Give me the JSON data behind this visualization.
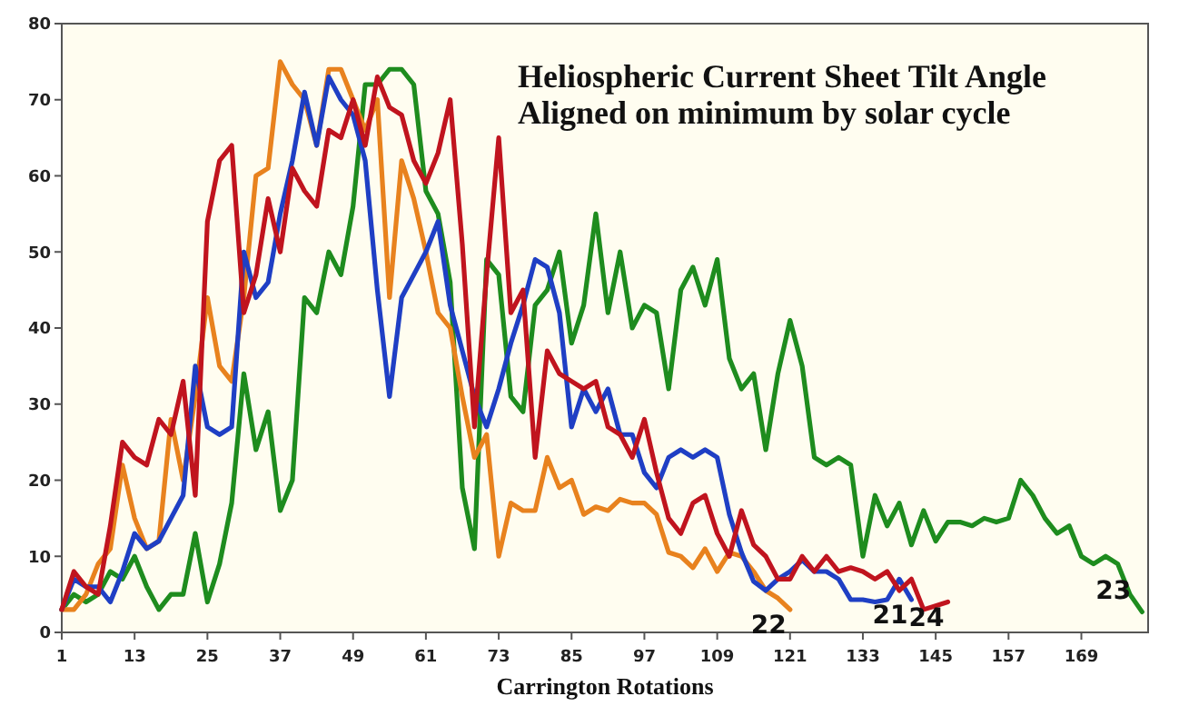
{
  "chart_data": {
    "type": "line",
    "title": "Heliospheric Current Sheet Tilt Angle",
    "subtitle": "Aligned on minimum by solar cycle",
    "xlabel": "Carrington Rotations",
    "x": [
      1,
      3,
      5,
      7,
      9,
      11,
      13,
      15,
      17,
      19,
      21,
      23,
      25,
      27,
      29,
      31,
      33,
      35,
      37,
      39,
      41,
      43,
      45,
      47,
      49,
      51,
      53,
      55,
      57,
      59,
      61,
      63,
      65,
      67,
      69,
      71,
      73,
      75,
      77,
      79,
      81,
      83,
      85,
      87,
      89,
      91,
      93,
      95,
      97,
      99,
      101,
      103,
      105,
      107,
      109,
      111,
      113,
      115,
      117,
      119,
      121,
      123,
      125,
      127,
      129,
      131,
      133,
      135,
      137,
      139,
      141,
      143,
      145,
      147,
      149,
      151,
      153,
      155,
      157,
      159,
      161,
      163,
      165,
      167,
      169,
      171,
      173,
      175,
      177,
      179
    ],
    "xlim": [
      1,
      180
    ],
    "xticks": [
      1,
      13,
      25,
      37,
      49,
      61,
      73,
      85,
      97,
      109,
      121,
      133,
      145,
      157,
      169
    ],
    "ylim": [
      0,
      80
    ],
    "yticks": [
      0,
      10,
      20,
      30,
      40,
      50,
      60,
      70,
      80
    ],
    "grid": false,
    "marker": "none",
    "line_style": "solid",
    "series": [
      {
        "name": "23",
        "color": "#1e8c1e",
        "values": [
          3,
          5,
          4,
          5,
          8,
          7,
          10,
          6,
          3,
          5,
          5,
          13,
          4,
          9,
          17,
          34,
          24,
          29,
          16,
          20,
          44,
          42,
          50,
          47,
          56,
          72,
          72,
          74,
          74,
          72,
          58,
          55,
          46,
          19,
          11,
          49,
          47,
          31,
          29,
          43,
          45,
          50,
          38,
          43,
          55,
          42,
          50,
          40,
          43,
          42,
          32,
          45,
          48,
          43,
          49,
          36,
          32,
          34,
          24,
          34,
          41,
          35,
          23,
          22,
          23,
          22,
          10,
          18,
          14,
          17,
          11.5,
          16,
          12,
          14.5,
          14.5,
          14,
          15,
          14.5,
          15,
          20,
          18,
          15,
          13,
          14,
          10,
          9,
          10,
          9,
          5,
          2.7
        ]
      },
      {
        "name": "22",
        "color": "#e8821e",
        "values": [
          3,
          3,
          5,
          9,
          11,
          22,
          15,
          11,
          12,
          28,
          20,
          31,
          44,
          35,
          33,
          44,
          60,
          61,
          75,
          72,
          70,
          64,
          74,
          74,
          70,
          66,
          70,
          44,
          62,
          57,
          50,
          42,
          40,
          31,
          23,
          26,
          10,
          17,
          16,
          16,
          23,
          19,
          20,
          15.5,
          16.5,
          16,
          17.5,
          17,
          17,
          15.5,
          10.5,
          10,
          8.5,
          11,
          8,
          10.5,
          10,
          8,
          5.5,
          4.5,
          3,
          null,
          null,
          null,
          null,
          null,
          null,
          null,
          null,
          null,
          null,
          null,
          null,
          null,
          null,
          null,
          null,
          null,
          null,
          null,
          null,
          null,
          null,
          null,
          null,
          null,
          null,
          null,
          null,
          null
        ]
      },
      {
        "name": "21",
        "color": "#1f3fc4",
        "values": [
          3,
          7,
          6,
          6,
          4,
          8,
          13,
          11,
          12,
          15,
          18,
          35,
          27,
          26,
          27,
          50,
          44,
          46,
          55,
          62,
          71,
          64,
          73,
          70,
          68,
          62,
          45,
          31,
          44,
          47,
          50,
          54,
          43,
          37,
          31,
          27,
          32,
          38,
          43,
          49,
          48,
          42,
          27,
          32,
          29,
          32,
          26,
          26,
          21,
          19,
          23,
          24,
          23,
          24,
          23,
          15.5,
          10.5,
          6.7,
          5.5,
          7,
          8,
          9.5,
          8,
          8,
          7,
          4.3,
          4.3,
          4,
          4.3,
          7,
          4.3,
          null,
          null,
          null,
          null,
          null,
          null,
          null,
          null,
          null,
          null,
          null,
          null,
          null,
          null,
          null,
          null,
          null,
          null,
          null
        ]
      },
      {
        "name": "24",
        "color": "#c0141e",
        "values": [
          3,
          8,
          6,
          5,
          14,
          25,
          23,
          22,
          28,
          26,
          33,
          18,
          54,
          62,
          64,
          42,
          47,
          57,
          50,
          61,
          58,
          56,
          66,
          65,
          70,
          64,
          73,
          69,
          68,
          62,
          59,
          63,
          70,
          51,
          27,
          47,
          65,
          42,
          45,
          23,
          37,
          34,
          33,
          32,
          33,
          27,
          26,
          23,
          28,
          21,
          15,
          13,
          17,
          18,
          13,
          10,
          16,
          11.5,
          10,
          7,
          7,
          10,
          8,
          10,
          8,
          8.5,
          8,
          7,
          8,
          5.5,
          7,
          3,
          3.5,
          4,
          null,
          null,
          null,
          null,
          null,
          null,
          null,
          null,
          null,
          null,
          null,
          null,
          null,
          null,
          null,
          null
        ]
      }
    ]
  }
}
